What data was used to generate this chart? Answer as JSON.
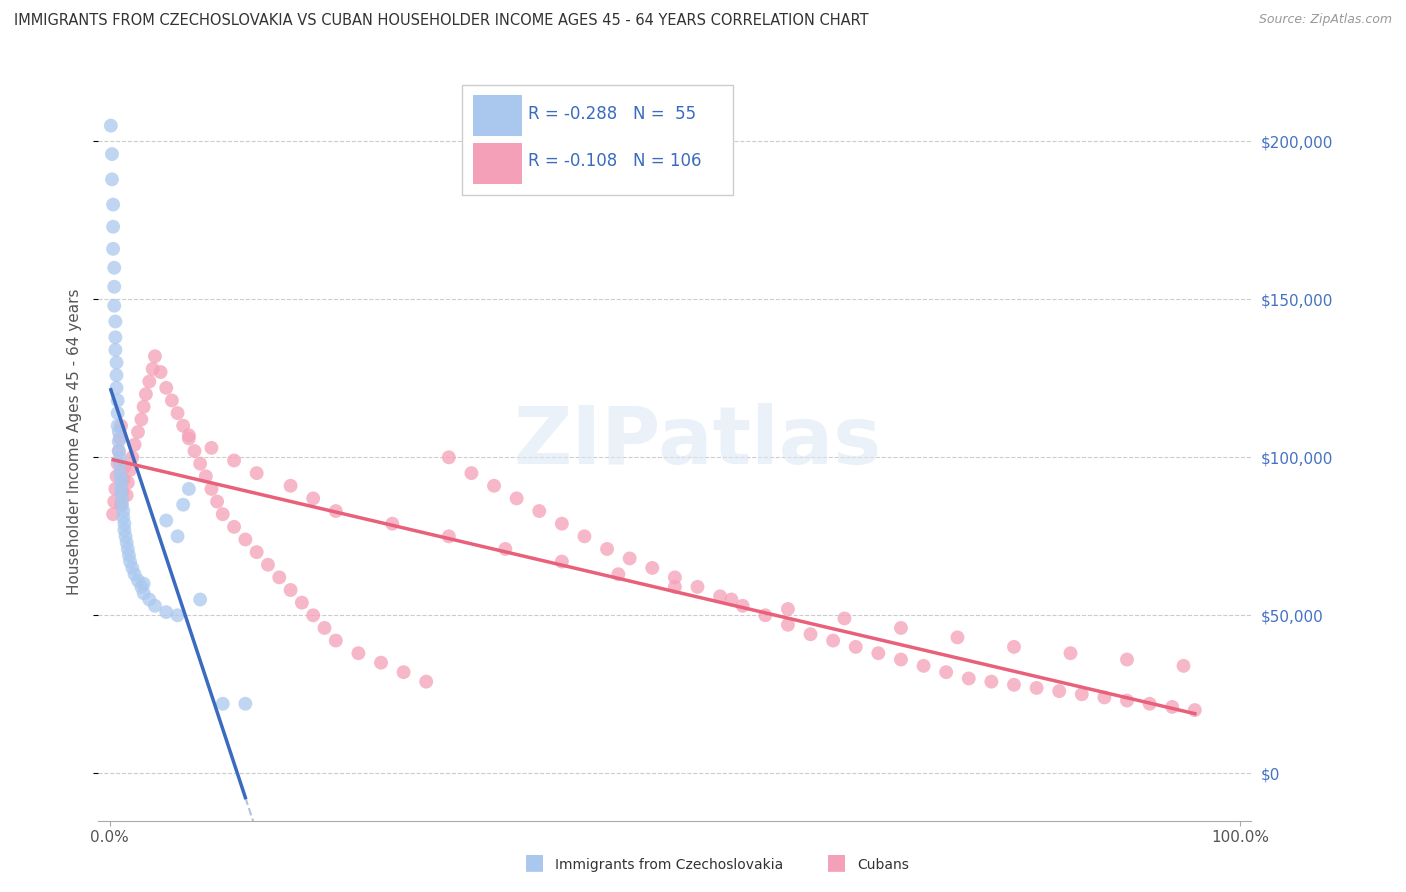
{
  "title": "IMMIGRANTS FROM CZECHOSLOVAKIA VS CUBAN HOUSEHOLDER INCOME AGES 45 - 64 YEARS CORRELATION CHART",
  "source": "Source: ZipAtlas.com",
  "ylabel": "Householder Income Ages 45 - 64 years",
  "xlim": [
    -0.01,
    1.01
  ],
  "ylim": [
    -15000,
    225000
  ],
  "xtick_positions": [
    0.0,
    1.0
  ],
  "xticklabels": [
    "0.0%",
    "100.0%"
  ],
  "yticks": [
    0,
    50000,
    100000,
    150000,
    200000
  ],
  "yticklabels": [
    "$0",
    "$50,000",
    "$100,000",
    "$150,000",
    "$200,000"
  ],
  "blue_color": "#aac8ee",
  "pink_color": "#f4a0b8",
  "blue_line_color": "#3a6bbf",
  "pink_line_color": "#e8607a",
  "dashed_line_color": "#b0c4de",
  "watermark": "ZIPatlas",
  "blue_R": -0.288,
  "blue_N": 55,
  "pink_R": -0.108,
  "pink_N": 106,
  "blue_scatter_x": [
    0.001,
    0.002,
    0.002,
    0.003,
    0.003,
    0.003,
    0.004,
    0.004,
    0.004,
    0.005,
    0.005,
    0.005,
    0.006,
    0.006,
    0.006,
    0.007,
    0.007,
    0.007,
    0.008,
    0.008,
    0.008,
    0.009,
    0.009,
    0.009,
    0.01,
    0.01,
    0.01,
    0.011,
    0.011,
    0.012,
    0.012,
    0.013,
    0.013,
    0.014,
    0.015,
    0.016,
    0.017,
    0.018,
    0.02,
    0.022,
    0.025,
    0.028,
    0.03,
    0.035,
    0.04,
    0.05,
    0.06,
    0.08,
    0.1,
    0.12,
    0.05,
    0.06,
    0.07,
    0.065,
    0.03
  ],
  "blue_scatter_y": [
    205000,
    196000,
    188000,
    180000,
    173000,
    166000,
    160000,
    154000,
    148000,
    143000,
    138000,
    134000,
    130000,
    126000,
    122000,
    118000,
    114000,
    110000,
    108000,
    105000,
    102000,
    100000,
    98000,
    95000,
    93000,
    91000,
    89000,
    87000,
    85000,
    83000,
    81000,
    79000,
    77000,
    75000,
    73000,
    71000,
    69000,
    67000,
    65000,
    63000,
    61000,
    59000,
    57000,
    55000,
    53000,
    51000,
    50000,
    55000,
    22000,
    22000,
    80000,
    75000,
    90000,
    85000,
    60000
  ],
  "pink_scatter_x": [
    0.003,
    0.004,
    0.005,
    0.006,
    0.007,
    0.008,
    0.009,
    0.01,
    0.01,
    0.011,
    0.012,
    0.013,
    0.015,
    0.016,
    0.018,
    0.02,
    0.022,
    0.025,
    0.028,
    0.03,
    0.032,
    0.035,
    0.038,
    0.04,
    0.045,
    0.05,
    0.055,
    0.06,
    0.065,
    0.07,
    0.075,
    0.08,
    0.085,
    0.09,
    0.095,
    0.1,
    0.11,
    0.12,
    0.13,
    0.14,
    0.15,
    0.16,
    0.17,
    0.18,
    0.19,
    0.2,
    0.22,
    0.24,
    0.26,
    0.28,
    0.3,
    0.32,
    0.34,
    0.36,
    0.38,
    0.4,
    0.42,
    0.44,
    0.46,
    0.48,
    0.5,
    0.52,
    0.54,
    0.56,
    0.58,
    0.6,
    0.62,
    0.64,
    0.66,
    0.68,
    0.7,
    0.72,
    0.74,
    0.76,
    0.78,
    0.8,
    0.82,
    0.84,
    0.86,
    0.88,
    0.9,
    0.92,
    0.94,
    0.96,
    0.07,
    0.09,
    0.11,
    0.13,
    0.16,
    0.18,
    0.2,
    0.25,
    0.3,
    0.35,
    0.4,
    0.45,
    0.5,
    0.55,
    0.6,
    0.65,
    0.7,
    0.75,
    0.8,
    0.85,
    0.9,
    0.95
  ],
  "pink_scatter_y": [
    82000,
    86000,
    90000,
    94000,
    98000,
    102000,
    106000,
    110000,
    85000,
    89000,
    93000,
    97000,
    88000,
    92000,
    96000,
    100000,
    104000,
    108000,
    112000,
    116000,
    120000,
    124000,
    128000,
    132000,
    127000,
    122000,
    118000,
    114000,
    110000,
    106000,
    102000,
    98000,
    94000,
    90000,
    86000,
    82000,
    78000,
    74000,
    70000,
    66000,
    62000,
    58000,
    54000,
    50000,
    46000,
    42000,
    38000,
    35000,
    32000,
    29000,
    100000,
    95000,
    91000,
    87000,
    83000,
    79000,
    75000,
    71000,
    68000,
    65000,
    62000,
    59000,
    56000,
    53000,
    50000,
    47000,
    44000,
    42000,
    40000,
    38000,
    36000,
    34000,
    32000,
    30000,
    29000,
    28000,
    27000,
    26000,
    25000,
    24000,
    23000,
    22000,
    21000,
    20000,
    107000,
    103000,
    99000,
    95000,
    91000,
    87000,
    83000,
    79000,
    75000,
    71000,
    67000,
    63000,
    59000,
    55000,
    52000,
    49000,
    46000,
    43000,
    40000,
    38000,
    36000,
    34000
  ]
}
